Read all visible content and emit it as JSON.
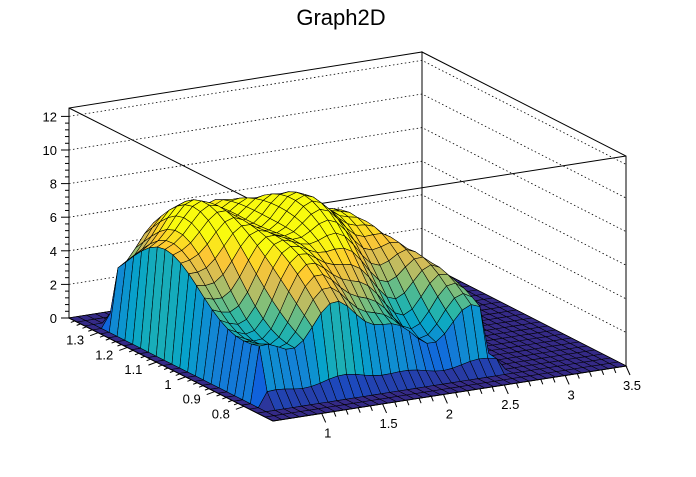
{
  "chart_data": {
    "type": "surface3d",
    "title": "Graph2D",
    "xlim": [
      0.6,
      3.5
    ],
    "ylim": [
      0.7,
      1.4
    ],
    "zlim": [
      0,
      12.5
    ],
    "x_ticks": [
      "1",
      "1.5",
      "2",
      "2.5",
      "3",
      "3.5"
    ],
    "y_ticks": [
      "0.8",
      "0.9",
      "1",
      "1.1",
      "1.2",
      "1.3"
    ],
    "z_ticks": [
      "0",
      "2",
      "4",
      "6",
      "8",
      "10",
      "12"
    ],
    "grid": true,
    "palette": [
      "#352a87",
      "#0f5cdd",
      "#1481d6",
      "#06a4ca",
      "#2eb7a4",
      "#87bf77",
      "#d1bb59",
      "#fec832",
      "#f9fb0e"
    ]
  }
}
